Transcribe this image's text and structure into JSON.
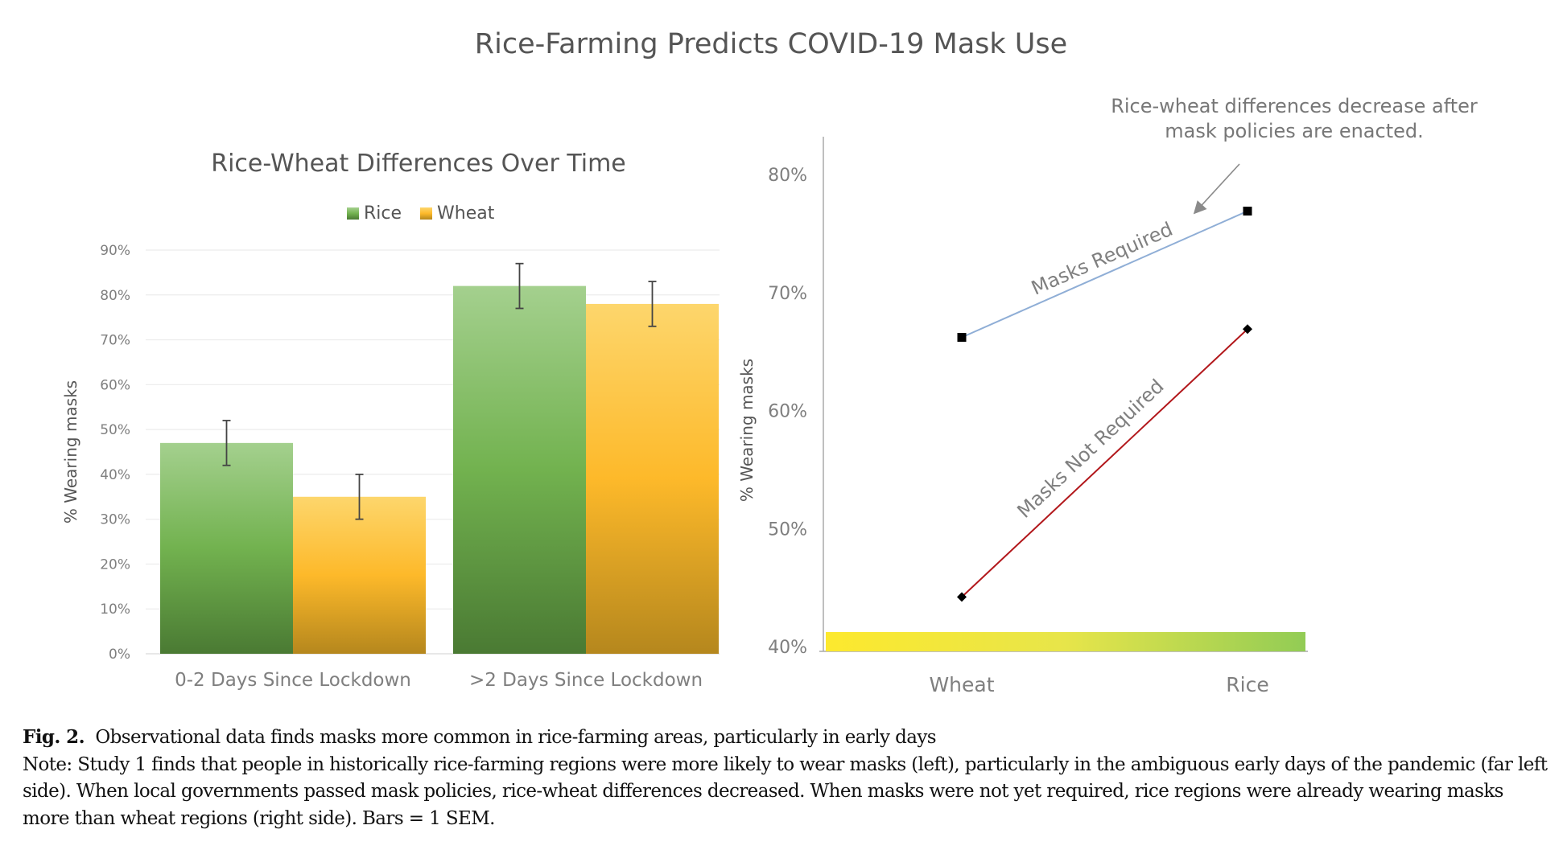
{
  "figure": {
    "title": "Rice-Farming Predicts COVID-19 Mask Use",
    "caption_label": "Fig. 2.",
    "caption_title": "Observational data finds masks more common in rice-farming areas, particularly in early days",
    "caption_note": "Note: Study 1 finds that people in historically rice-farming regions were more likely to wear masks (left), particularly in the ambiguous early days of the pandemic (far left side). When local governments passed mask policies, rice-wheat differences decreased. When masks were not yet required, rice regions were already wearing masks more than wheat regions (right side). Bars = 1 SEM."
  },
  "colors": {
    "rice_top": "#a4d08e",
    "rice_mid": "#72b24f",
    "rice_bottom": "#4a7a33",
    "wheat_top": "#fdd66c",
    "wheat_mid": "#fdb92a",
    "wheat_bottom": "#b5871d",
    "masks_required_line": "#8faed6",
    "masks_not_required_line": "#b2171b",
    "axis_text": "#7f7f7f",
    "grid": "#ececec"
  },
  "chart_data": [
    {
      "type": "bar",
      "title": "Rice-Wheat Differences Over Time",
      "xlabel": "",
      "ylabel": "%  Wearing masks",
      "ylim": [
        0,
        90
      ],
      "yticks": [
        0,
        10,
        20,
        30,
        40,
        50,
        60,
        70,
        80,
        90
      ],
      "ytick_labels": [
        "0%",
        "10%",
        "20%",
        "30%",
        "40%",
        "50%",
        "60%",
        "70%",
        "80%",
        "90%"
      ],
      "grid": true,
      "legend": "top-center",
      "categories": [
        "0-2 Days Since Lockdown",
        ">2 Days Since Lockdown"
      ],
      "series": [
        {
          "name": "Rice",
          "values": [
            47,
            82
          ],
          "error": [
            5,
            5
          ]
        },
        {
          "name": "Wheat",
          "values": [
            35,
            78
          ],
          "error": [
            5,
            5
          ]
        }
      ]
    },
    {
      "type": "line",
      "title": "",
      "xlabel": "",
      "ylabel": "%  Wearing masks",
      "ylim": [
        40,
        83
      ],
      "yticks": [
        40,
        50,
        60,
        70,
        80
      ],
      "ytick_labels": [
        "40%",
        "50%",
        "60%",
        "70%",
        "80%"
      ],
      "grid": false,
      "categories": [
        "Wheat",
        "Rice"
      ],
      "series": [
        {
          "name": "Masks Required",
          "values": [
            66.2,
            76.9
          ],
          "marker": "square"
        },
        {
          "name": "Masks Not Required",
          "values": [
            44.2,
            66.9
          ],
          "marker": "diamond"
        }
      ],
      "annotation": {
        "line1": "Rice-wheat differences decrease after",
        "line2": "mask policies are enacted."
      },
      "baseline_gradient": [
        "Wheat",
        "Rice"
      ]
    }
  ]
}
